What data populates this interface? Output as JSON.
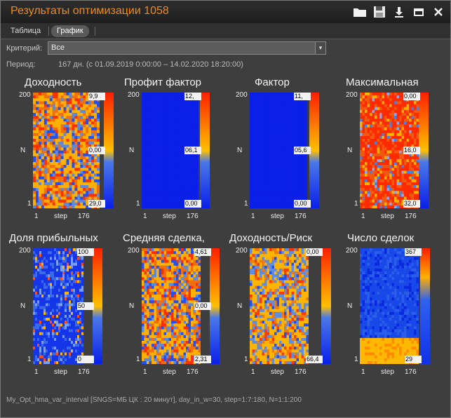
{
  "window": {
    "title": "Результаты оптимизации 1058"
  },
  "toolbar": [
    {
      "name": "open-folder-icon",
      "glyph": "folder"
    },
    {
      "name": "save-icon",
      "glyph": "save"
    },
    {
      "name": "download-icon",
      "glyph": "down"
    },
    {
      "name": "minimize-icon",
      "glyph": "min"
    },
    {
      "name": "close-icon",
      "glyph": "close"
    }
  ],
  "tabs": {
    "table": "Таблица",
    "chart": "График"
  },
  "criteria": {
    "label": "Критерий:",
    "value": "Все"
  },
  "period": {
    "label": "Период:",
    "value": "167 дн.  (с 01.09.2019 0:00:00 – 14.02.2020 18:20:00)"
  },
  "axis": {
    "ytop": "200",
    "ybot": "1",
    "ylabel": "N",
    "xleft": "1",
    "xmid": "step",
    "xright": "176"
  },
  "panels": [
    {
      "title": "Доходность",
      "cb": [
        "9,9",
        "0,00",
        "29,0"
      ],
      "style": "mixed"
    },
    {
      "title": "Профит фактор",
      "cb": [
        "12,",
        "06,1",
        "0,00"
      ],
      "style": "blue"
    },
    {
      "title": "Фактор",
      "cb": [
        "11,",
        "05,6",
        "0,00"
      ],
      "style": "blue"
    },
    {
      "title": "Максимальная",
      "cb": [
        "0,00",
        "16,0",
        "32,0"
      ],
      "style": "red"
    },
    {
      "title": "Доля прибыльных",
      "cb": [
        "100",
        "50",
        "0"
      ],
      "style": "bluemix"
    },
    {
      "title": "Средняя сделка,",
      "cb": [
        "4,61",
        "0,00",
        "2,31"
      ],
      "style": "mixed"
    },
    {
      "title": "Доходность/Риск",
      "cb": [
        "0,00",
        "",
        "66,4"
      ],
      "style": "yellow"
    },
    {
      "title": "Число сделок",
      "cb": [
        "367",
        "",
        "29"
      ],
      "style": "count"
    }
  ],
  "footer": "My_Opt_hma_var_interval [SNGS=МБ ЦК : 20 минут], day_in_w=30, step=1:7:180, N=1:1:200"
}
